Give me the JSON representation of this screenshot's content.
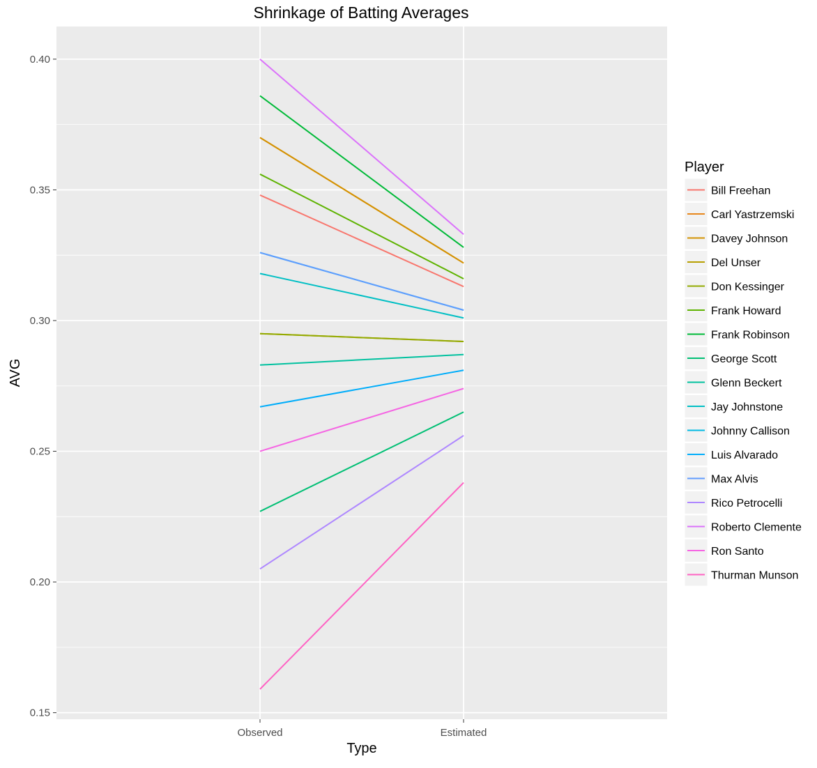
{
  "chart_data": {
    "type": "line",
    "title": "Shrinkage of Batting Averages",
    "xlabel": "Type",
    "ylabel": "AVG",
    "categories": [
      "Observed",
      "Estimated"
    ],
    "ylim": [
      0.1475,
      0.4125
    ],
    "yticks": [
      "0.15",
      "0.20",
      "0.25",
      "0.30",
      "0.35",
      "0.40"
    ],
    "legend_title": "Player",
    "legend_position": "right",
    "grid": true,
    "series": [
      {
        "name": "Bill Freehan",
        "color": "#F8766D",
        "values": [
          0.348,
          0.313
        ]
      },
      {
        "name": "Carl Yastrzemski",
        "color": "#E7861B",
        "values": [
          0.37,
          0.322
        ]
      },
      {
        "name": "Davey Johnson",
        "color": "#D39200",
        "values": [
          0.37,
          0.322
        ]
      },
      {
        "name": "Del Unser",
        "color": "#B79F00",
        "values": [
          0.295,
          0.292
        ]
      },
      {
        "name": "Don Kessinger",
        "color": "#93AA00",
        "values": [
          0.295,
          0.292
        ]
      },
      {
        "name": "Frank Howard",
        "color": "#5EB300",
        "values": [
          0.356,
          0.316
        ]
      },
      {
        "name": "Frank Robinson",
        "color": "#00BA38",
        "values": [
          0.386,
          0.328
        ]
      },
      {
        "name": "George Scott",
        "color": "#00BF74",
        "values": [
          0.227,
          0.265
        ]
      },
      {
        "name": "Glenn Beckert",
        "color": "#00C19F",
        "values": [
          0.283,
          0.287
        ]
      },
      {
        "name": "Jay Johnstone",
        "color": "#00BFC4",
        "values": [
          0.318,
          0.301
        ]
      },
      {
        "name": "Johnny Callison",
        "color": "#00B9E3",
        "values": [
          0.326,
          0.304
        ]
      },
      {
        "name": "Luis Alvarado",
        "color": "#00ADFA",
        "values": [
          0.267,
          0.281
        ]
      },
      {
        "name": "Max Alvis",
        "color": "#619CFF",
        "values": [
          0.326,
          0.304
        ]
      },
      {
        "name": "Rico Petrocelli",
        "color": "#AE87FF",
        "values": [
          0.205,
          0.256
        ]
      },
      {
        "name": "Roberto Clemente",
        "color": "#DB72FB",
        "values": [
          0.4,
          0.333
        ]
      },
      {
        "name": "Ron Santo",
        "color": "#F564E3",
        "values": [
          0.25,
          0.274
        ]
      },
      {
        "name": "Thurman Munson",
        "color": "#FF61C3",
        "values": [
          0.159,
          0.238
        ]
      }
    ]
  }
}
